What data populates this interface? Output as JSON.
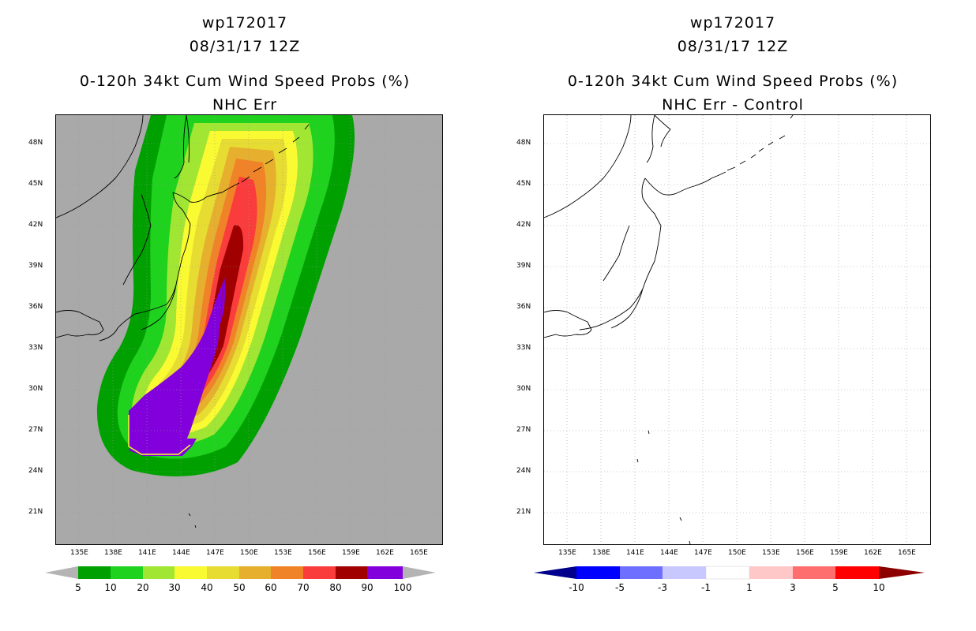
{
  "left_panel": {
    "storm_id": "wp172017",
    "datetime": "08/31/17 12Z",
    "product": "0-120h 34kt Cum Wind Speed Probs (%)",
    "subtitle": "NHC Err"
  },
  "right_panel": {
    "storm_id": "wp172017",
    "datetime": "08/31/17 12Z",
    "product": "0-120h 34kt Cum Wind Speed Probs (%)",
    "subtitle": "NHC Err - Control"
  },
  "lat_labels": [
    "48N",
    "45N",
    "42N",
    "39N",
    "36N",
    "33N",
    "30N",
    "27N",
    "24N",
    "21N"
  ],
  "lon_labels": [
    "135E",
    "138E",
    "141E",
    "144E",
    "147E",
    "150E",
    "153E",
    "156E",
    "159E",
    "162E",
    "165E"
  ],
  "left_colorbar": {
    "labels": [
      "5",
      "10",
      "20",
      "30",
      "40",
      "50",
      "60",
      "70",
      "80",
      "90",
      "100"
    ],
    "colors": [
      "#00a000",
      "#1ed21e",
      "#a0e632",
      "#fafa32",
      "#e6dc32",
      "#e6af2d",
      "#f08228",
      "#fa3c3c",
      "#a00000",
      "#8200dc"
    ],
    "low_end_color": "#b4b4b4",
    "high_end_color": "#b4b4b4"
  },
  "right_colorbar": {
    "labels": [
      "-10",
      "-5",
      "-3",
      "-1",
      "1",
      "3",
      "5",
      "10"
    ],
    "colors": [
      "#00008c",
      "#0000ff",
      "#6e6eff",
      "#c8c8ff",
      "#ffffff",
      "#ffc8c8",
      "#ff6e6e",
      "#ff0000",
      "#8c0000"
    ]
  },
  "colors": {
    "land_ocean_bg": "#a9a9a9",
    "grid": "#9a9a9a",
    "coast": "#000000"
  }
}
